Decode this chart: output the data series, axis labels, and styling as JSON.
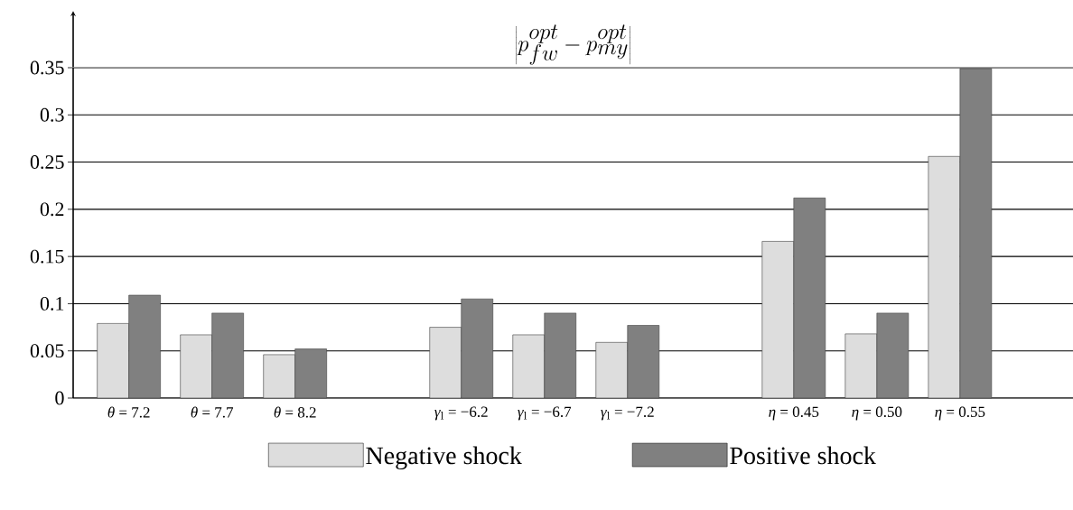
{
  "chart_data": {
    "type": "bar",
    "title": "\\left|p^{opt}_{fw} - p^{opt}_{my}\\right|",
    "categories": [
      "*θ* = 7.2",
      "*θ* = 7.7",
      "*θ* = 8.2",
      null,
      "*γ*$_{l}$ = −6.2",
      "*γ*$_{l}$ = −6.7",
      "*γ*$_{l}$ = −7.2",
      null,
      "*η* = 0.45",
      "*η* = 0.50",
      "*η* = 0.55"
    ],
    "series": [
      {
        "name": "Negative shock",
        "color": "#dddddd",
        "values": [
          0.079,
          0.067,
          0.046,
          null,
          0.075,
          0.067,
          0.059,
          null,
          0.166,
          0.068,
          0.256
        ]
      },
      {
        "name": "Positive shock",
        "color": "#808080",
        "values": [
          0.109,
          0.09,
          0.052,
          null,
          0.105,
          0.09,
          0.077,
          null,
          0.212,
          0.09,
          0.349
        ]
      }
    ],
    "ylim": [
      0,
      0.35
    ],
    "yticks": [
      0,
      0.05,
      0.1,
      0.15,
      0.2,
      0.25,
      0.3,
      0.35
    ],
    "grid": "y",
    "legend": "bottom"
  }
}
